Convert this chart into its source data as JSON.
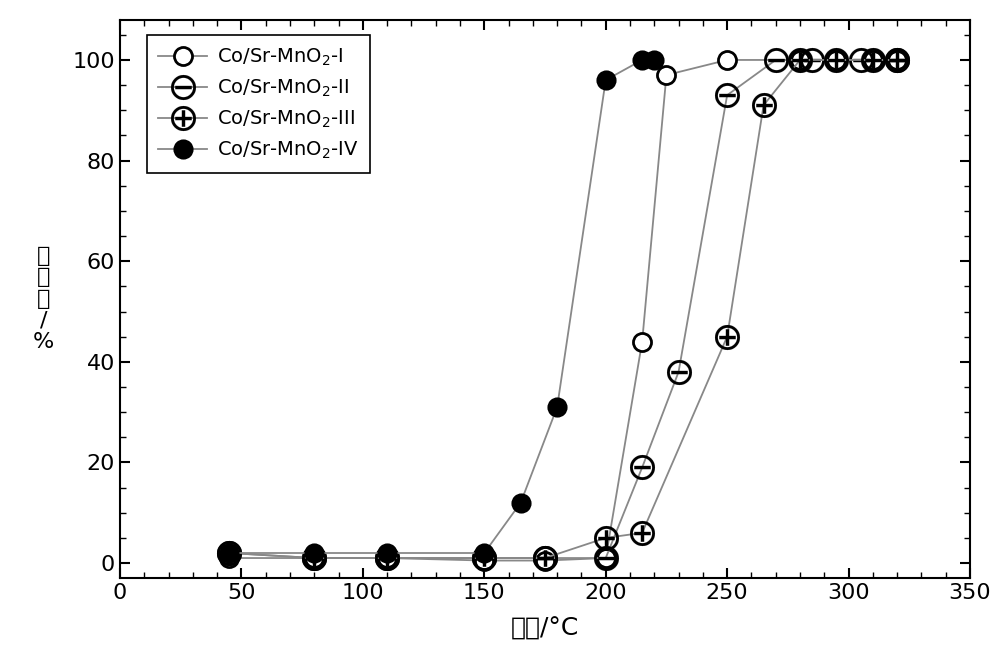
{
  "series_I": {
    "x": [
      45,
      80,
      110,
      150,
      175,
      200,
      215,
      225,
      250,
      280,
      295,
      310,
      320
    ],
    "y": [
      1,
      1,
      1,
      0.5,
      0.5,
      1,
      44,
      97,
      100,
      100,
      100,
      100,
      100
    ],
    "marker": "open_circle",
    "label": "Co/Sr-MnO$_2$-I"
  },
  "series_II": {
    "x": [
      45,
      80,
      110,
      150,
      175,
      200,
      215,
      230,
      250,
      270,
      285,
      305,
      320
    ],
    "y": [
      2,
      1,
      1,
      1,
      1,
      1,
      19,
      38,
      93,
      100,
      100,
      100,
      100
    ],
    "marker": "ominus",
    "label": "Co/Sr-MnO$_2$-II"
  },
  "series_III": {
    "x": [
      45,
      80,
      110,
      150,
      175,
      200,
      215,
      250,
      265,
      280,
      295,
      310,
      320
    ],
    "y": [
      2,
      1,
      1,
      1,
      1,
      5,
      6,
      45,
      91,
      100,
      100,
      100,
      100
    ],
    "marker": "oplus",
    "label": "Co/Sr-MnO$_2$-III"
  },
  "series_IV": {
    "x": [
      45,
      80,
      110,
      150,
      165,
      180,
      200,
      215,
      220
    ],
    "y": [
      2,
      2,
      2,
      2,
      12,
      31,
      96,
      100,
      100
    ],
    "marker": "filled_circle",
    "label": "Co/Sr-MnO$_2$-IV"
  },
  "xlabel": "温度/°C",
  "ylabel_chars": [
    "转",
    "化",
    "率",
    "/",
    "%"
  ],
  "xlim": [
    0,
    350
  ],
  "ylim": [
    -3,
    108
  ],
  "xticks": [
    0,
    50,
    100,
    150,
    200,
    250,
    300,
    350
  ],
  "yticks": [
    0,
    20,
    40,
    60,
    80,
    100
  ],
  "line_color": "#888888",
  "marker_size": 13,
  "line_width": 1.3,
  "figsize": [
    10.0,
    6.57
  ],
  "dpi": 100
}
